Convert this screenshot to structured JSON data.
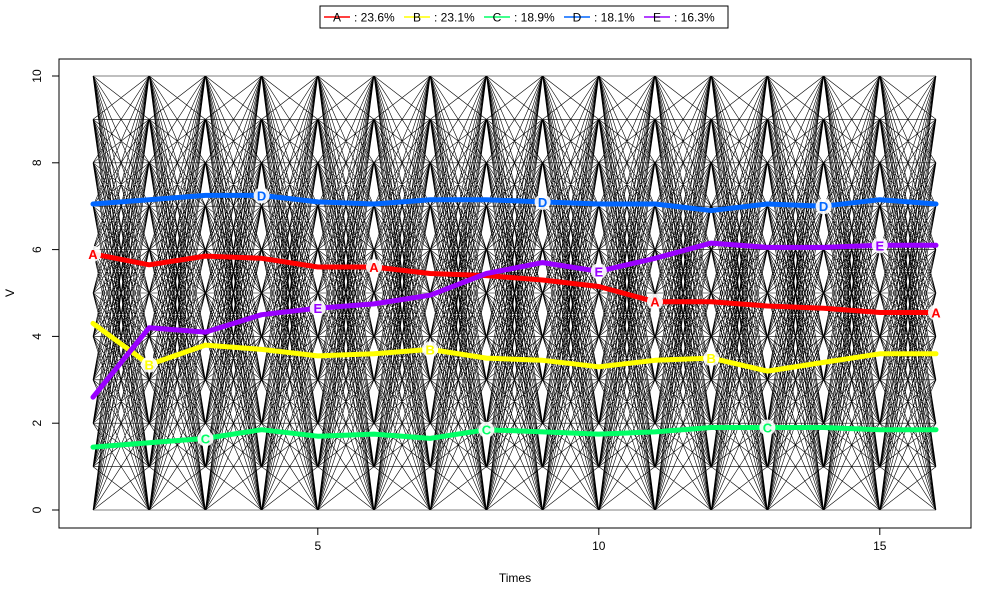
{
  "chart_data": {
    "type": "line",
    "xlabel": "Times",
    "ylabel": "V",
    "xlim": [
      1,
      16
    ],
    "ylim": [
      0,
      10
    ],
    "x_ticks": [
      5,
      10,
      15
    ],
    "y_ticks": [
      0,
      2,
      4,
      6,
      8,
      10
    ],
    "x": [
      1,
      2,
      3,
      4,
      5,
      6,
      7,
      8,
      9,
      10,
      11,
      12,
      13,
      14,
      15,
      16
    ],
    "background_levels": [
      0,
      1,
      2,
      3,
      4,
      5,
      6,
      7,
      8,
      9,
      10
    ],
    "legend_position": "top-center",
    "series": [
      {
        "name": "A",
        "legend_label": ": 23.6%",
        "color": "#FF0000",
        "marker_x": [
          1,
          6,
          11,
          16
        ],
        "values": [
          5.9,
          5.65,
          5.85,
          5.8,
          5.6,
          5.6,
          5.45,
          5.4,
          5.3,
          5.15,
          4.8,
          4.8,
          4.7,
          4.65,
          4.55,
          4.55
        ]
      },
      {
        "name": "B",
        "legend_label": ": 23.1%",
        "color": "#FFFF00",
        "marker_x": [
          2,
          7,
          12
        ],
        "values": [
          4.3,
          3.35,
          3.8,
          3.7,
          3.55,
          3.6,
          3.7,
          3.5,
          3.45,
          3.3,
          3.45,
          3.5,
          3.2,
          3.4,
          3.6,
          3.6
        ]
      },
      {
        "name": "C",
        "legend_label": ": 18.9%",
        "color": "#00FF66",
        "marker_x": [
          3,
          8,
          13
        ],
        "values": [
          1.45,
          1.55,
          1.65,
          1.85,
          1.7,
          1.75,
          1.65,
          1.85,
          1.8,
          1.75,
          1.8,
          1.9,
          1.9,
          1.9,
          1.85,
          1.85
        ]
      },
      {
        "name": "D",
        "legend_label": ": 18.1%",
        "color": "#0066FF",
        "marker_x": [
          4,
          9,
          14
        ],
        "values": [
          7.05,
          7.15,
          7.25,
          7.25,
          7.1,
          7.05,
          7.15,
          7.15,
          7.1,
          7.05,
          7.05,
          6.9,
          7.05,
          7.0,
          7.15,
          7.05
        ]
      },
      {
        "name": "E",
        "legend_label": ": 16.3%",
        "color": "#9900FF",
        "marker_x": [
          5,
          10,
          15
        ],
        "values": [
          2.6,
          4.2,
          4.1,
          4.5,
          4.65,
          4.75,
          4.95,
          5.45,
          5.7,
          5.5,
          5.8,
          6.15,
          6.05,
          6.05,
          6.1,
          6.1
        ]
      }
    ]
  }
}
